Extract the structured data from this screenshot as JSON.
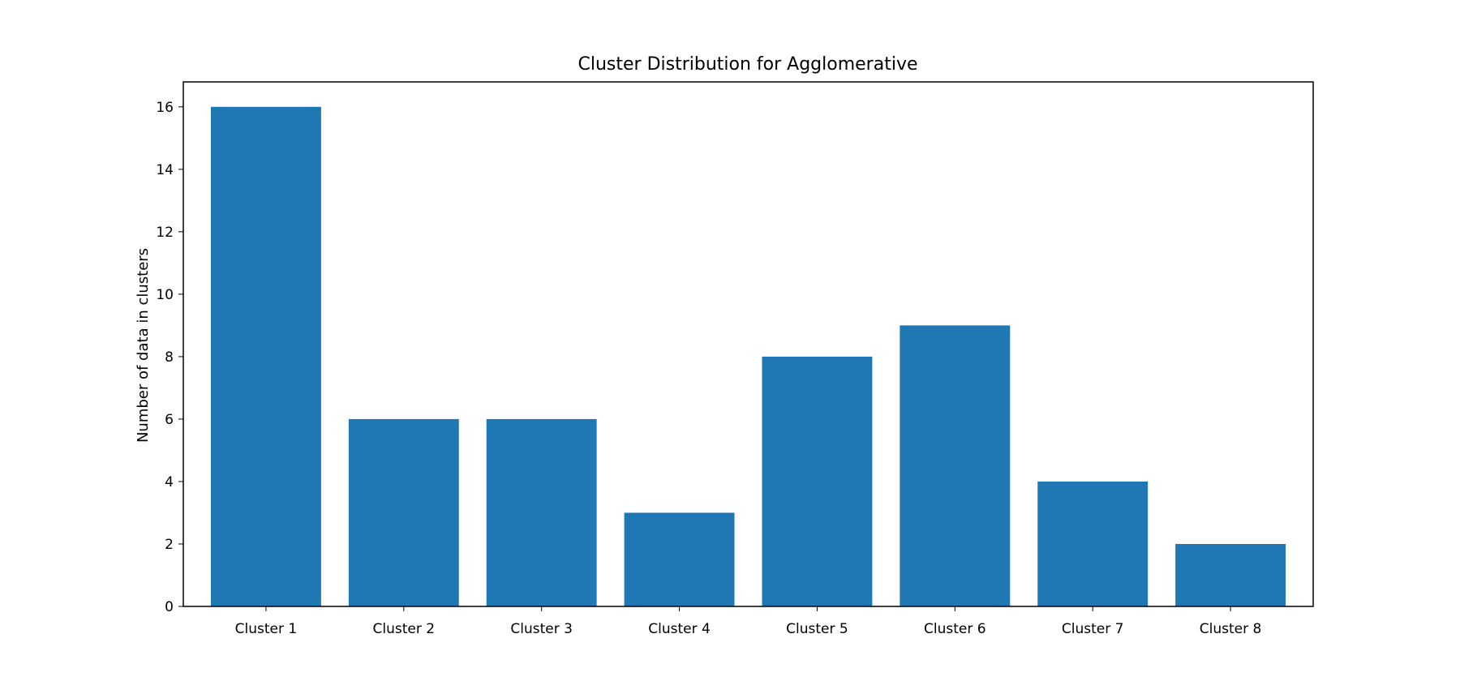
{
  "chart_data": {
    "type": "bar",
    "title": "Cluster Distribution for Agglomerative",
    "xlabel": "",
    "ylabel": "Number of data in clusters",
    "categories": [
      "Cluster 1",
      "Cluster 2",
      "Cluster 3",
      "Cluster 4",
      "Cluster 5",
      "Cluster 6",
      "Cluster 7",
      "Cluster 8"
    ],
    "values": [
      16,
      6,
      6,
      3,
      8,
      9,
      4,
      2
    ],
    "ylim": [
      0,
      16.8
    ],
    "yticks": [
      "0",
      "2",
      "4",
      "6",
      "8",
      "10",
      "12",
      "14",
      "16"
    ],
    "bar_color": "#1f77b4",
    "grid": false,
    "legend": "none"
  }
}
